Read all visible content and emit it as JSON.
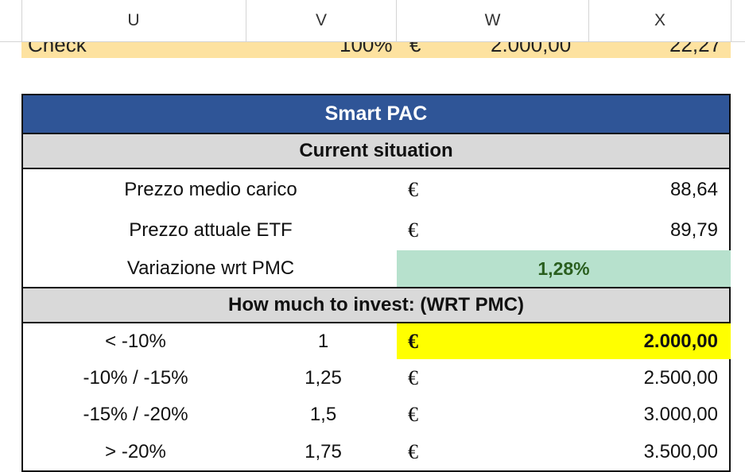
{
  "columns": [
    "U",
    "V",
    "W",
    "X"
  ],
  "check_row": {
    "label": "Check",
    "percent": "100%",
    "currency": "€",
    "amount": "2.000,00",
    "value": "22,27"
  },
  "table": {
    "title": "Smart PAC",
    "current_section": "Current situation",
    "current_rows": [
      {
        "label": "Prezzo medio carico",
        "currency": "€",
        "value": "88,64"
      },
      {
        "label": "Prezzo attuale ETF",
        "currency": "€",
        "value": "89,79"
      }
    ],
    "variation": {
      "label": "Variazione wrt PMC",
      "value": "1,28%"
    },
    "invest_section": "How much to invest: (WRT PMC)",
    "invest_rows": [
      {
        "range": "< -10%",
        "multiplier": "1",
        "currency": "€",
        "amount": "2.000,00"
      },
      {
        "range": "-10% / -15%",
        "multiplier": "1,25",
        "currency": "€",
        "amount": "2.500,00"
      },
      {
        "range": "-15% / -20%",
        "multiplier": "1,5",
        "currency": "€",
        "amount": "3.000,00"
      },
      {
        "range": "> -20%",
        "multiplier": "1,75",
        "currency": "€",
        "amount": "3.500,00"
      }
    ]
  },
  "colors": {
    "title_bg": "#2f5597",
    "section_bg": "#d9d9d9",
    "positive_bg": "#b7e1cd",
    "highlight_bg": "#ffff00",
    "check_bg": "#fde2a0"
  }
}
